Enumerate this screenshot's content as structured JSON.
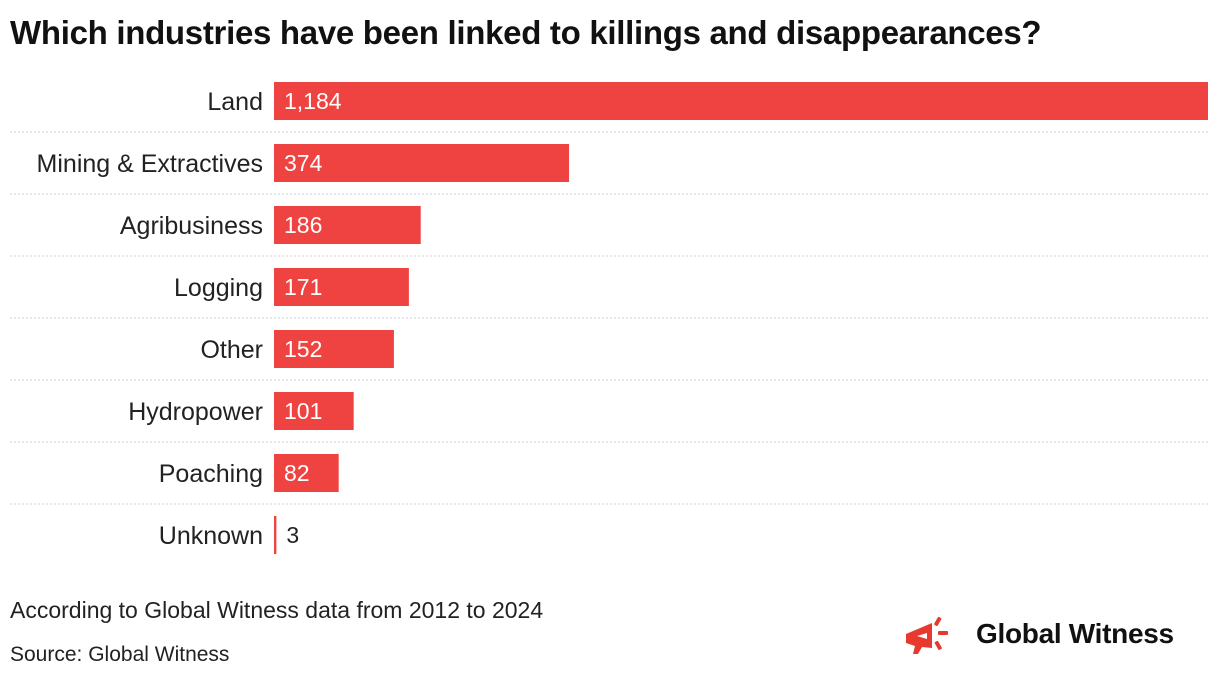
{
  "title": "Which industries have been linked to killings and disappearances?",
  "note": "According to Global Witness data from 2012 to 2024",
  "source": "Source: Global Witness",
  "brand": {
    "name": "Global Witness",
    "icon": "megaphone-icon",
    "color": "#e8392f"
  },
  "colors": {
    "bar": "#ee4340",
    "grid": "#cfcfcf",
    "label_inside": "#ffffff",
    "label_outside": "#222222"
  },
  "chart_data": {
    "type": "bar",
    "orientation": "horizontal",
    "categories": [
      "Land",
      "Mining & Extractives",
      "Agribusiness",
      "Logging",
      "Other",
      "Hydropower",
      "Poaching",
      "Unknown"
    ],
    "values": [
      1184,
      374,
      186,
      171,
      152,
      101,
      82,
      3
    ],
    "value_labels": [
      "1,184",
      "374",
      "186",
      "171",
      "152",
      "101",
      "82",
      "3"
    ],
    "xlim": [
      0,
      1184
    ],
    "grid": true
  }
}
